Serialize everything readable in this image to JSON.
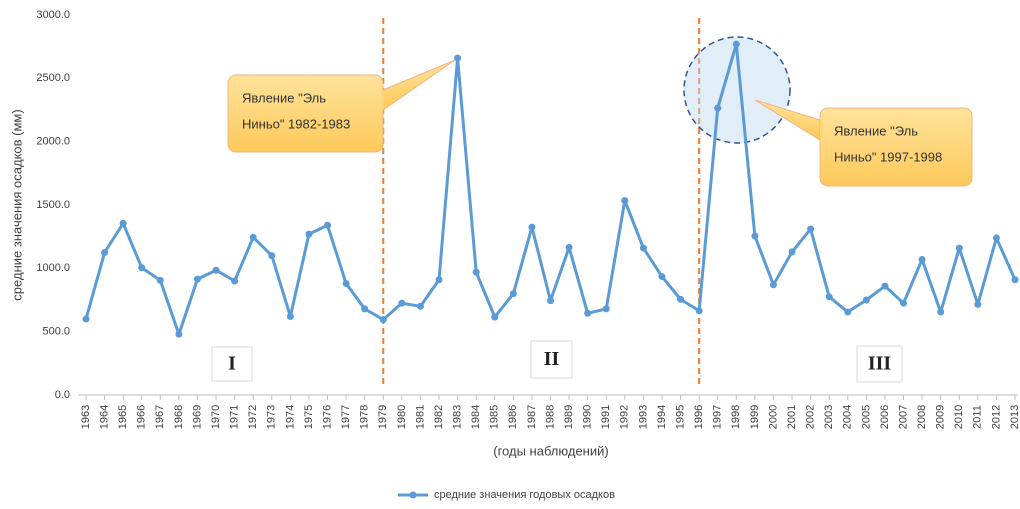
{
  "chart_data": {
    "type": "line",
    "y_label": "средние значения осадков (мм)",
    "x_label": "(годы наблюдений)",
    "categories": [
      "1963",
      "1964",
      "1965",
      "1966",
      "1967",
      "1968",
      "1969",
      "1970",
      "1971",
      "1972",
      "1973",
      "1974",
      "1975",
      "1976",
      "1977",
      "1978",
      "1979",
      "1980",
      "1981",
      "1982",
      "1983",
      "1984",
      "1985",
      "1986",
      "1987",
      "1988",
      "1989",
      "1990",
      "1991",
      "1992",
      "1993",
      "1994",
      "1995",
      "1996",
      "1997",
      "1998",
      "1999",
      "2000",
      "2001",
      "2002",
      "2003",
      "2004",
      "2005",
      "2006",
      "2007",
      "2008",
      "2009",
      "2010",
      "2011",
      "2012",
      "2013"
    ],
    "series": [
      {
        "name": "средние значения годовых осадков",
        "color": "#5b9bd5",
        "values": [
          600,
          1125,
          1355,
          1005,
          905,
          480,
          915,
          985,
          900,
          1245,
          1100,
          620,
          1270,
          1340,
          880,
          680,
          595,
          725,
          700,
          910,
          2660,
          970,
          615,
          800,
          1325,
          745,
          1165,
          645,
          680,
          1535,
          1160,
          935,
          755,
          665,
          2265,
          2770,
          1255,
          870,
          1130,
          1310,
          775,
          655,
          750,
          860,
          725,
          1070,
          655,
          1160,
          715,
          1240,
          910
        ]
      }
    ],
    "ylim": [
      0,
      3000
    ],
    "yticks": [
      {
        "value": 0,
        "label": "0.0"
      },
      {
        "value": 500,
        "label": "500.0"
      },
      {
        "value": 1000,
        "label": "1000.0"
      },
      {
        "value": 1500,
        "label": "1500.0"
      },
      {
        "value": 2000,
        "label": "2000.0"
      },
      {
        "value": 2500,
        "label": "2500.0"
      },
      {
        "value": 3000,
        "label": "3000.0"
      }
    ],
    "grid": false,
    "legend": "bottom",
    "periods": [
      "I",
      "II",
      "III"
    ],
    "annotations": [
      {
        "lines": [
          "Явление \"Эль",
          "Ниньо\" 1982-1983"
        ]
      },
      {
        "lines": [
          "Явление \"Эль",
          "Ниньо\" 1997-1998"
        ]
      }
    ]
  }
}
